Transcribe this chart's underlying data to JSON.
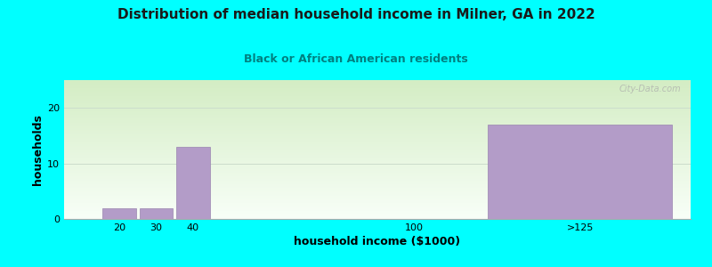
{
  "title": "Distribution of median household income in Milner, GA in 2022",
  "subtitle": "Black or African American residents",
  "xlabel": "household income ($1000)",
  "ylabel": "households",
  "background_color": "#00FFFF",
  "bar_color": "#b39cc8",
  "bar_edge_color": "#9a85b0",
  "categories": [
    "20",
    "30",
    "40",
    "100",
    ">125"
  ],
  "values": [
    2,
    2,
    13,
    0,
    17
  ],
  "bar_positions": [
    20,
    30,
    40,
    100,
    145
  ],
  "display_widths": [
    9,
    9,
    9,
    9,
    50
  ],
  "ylim": [
    0,
    25
  ],
  "yticks": [
    0,
    10,
    20
  ],
  "xlim": [
    5,
    175
  ],
  "xtick_positions": [
    20,
    30,
    40,
    100,
    145
  ],
  "watermark": "City-Data.com",
  "title_fontsize": 11,
  "subtitle_fontsize": 9,
  "axis_label_fontsize": 9,
  "subtitle_color": "#008080",
  "gradient_top": "#d4edc4",
  "gradient_bottom": "#f8fff8"
}
